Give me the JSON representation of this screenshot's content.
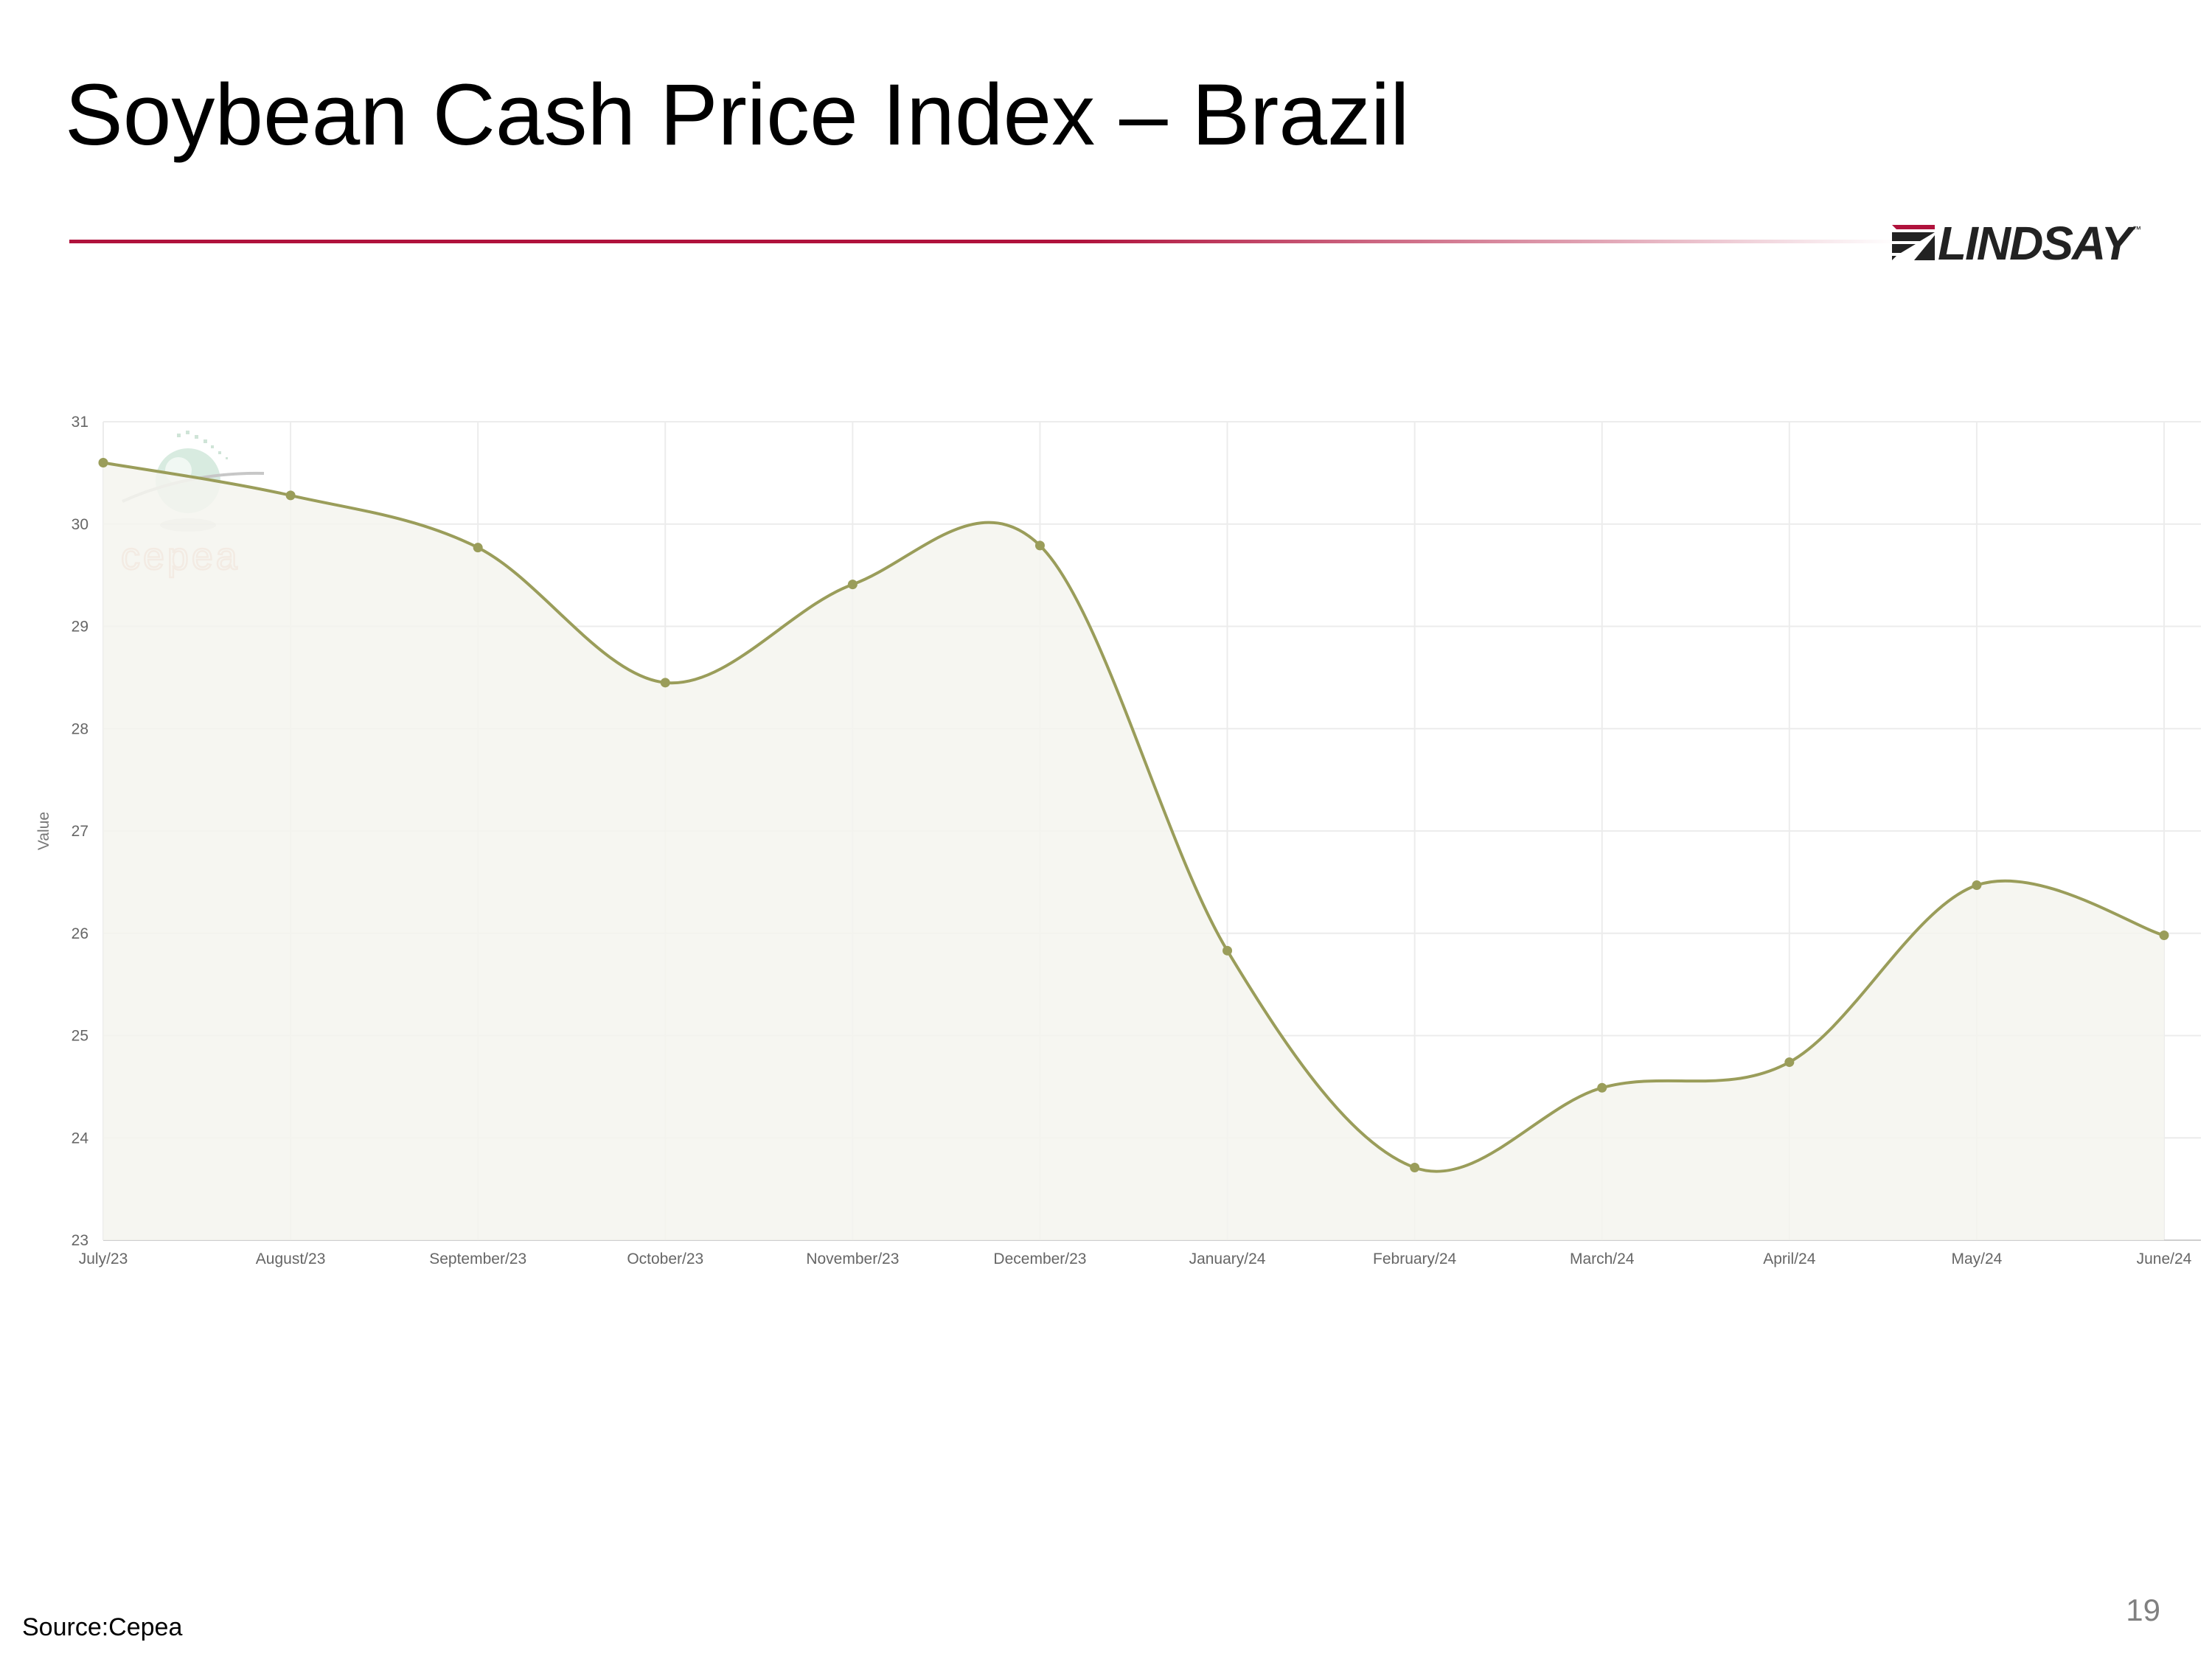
{
  "slide": {
    "title": "Soybean Cash Price Index – Brazil",
    "logo_text": "LINDSAY",
    "logo_tm": "™",
    "source": "Source:Cepea",
    "page_number": "19",
    "accent_color": "#b0123c"
  },
  "watermark": {
    "text": "cepea",
    "icon": "globe-logo-icon"
  },
  "chart_data": {
    "type": "area",
    "title": "",
    "xlabel": "",
    "ylabel": "Value",
    "categories": [
      "July/23",
      "August/23",
      "September/23",
      "October/23",
      "November/23",
      "December/23",
      "January/24",
      "February/24",
      "March/24",
      "April/24",
      "May/24",
      "June/24"
    ],
    "series": [
      {
        "values": [
          30.6,
          30.28,
          29.77,
          28.45,
          29.41,
          29.79,
          25.83,
          23.71,
          24.49,
          24.74,
          26.47,
          25.98
        ]
      }
    ],
    "yticks": [
      23,
      24,
      25,
      26,
      27,
      28,
      29,
      30,
      31
    ],
    "ylim": [
      23,
      31
    ],
    "grid": true,
    "line_color": "#9a9d5a",
    "fill_color": "#f5f5ee",
    "smooth": true
  }
}
